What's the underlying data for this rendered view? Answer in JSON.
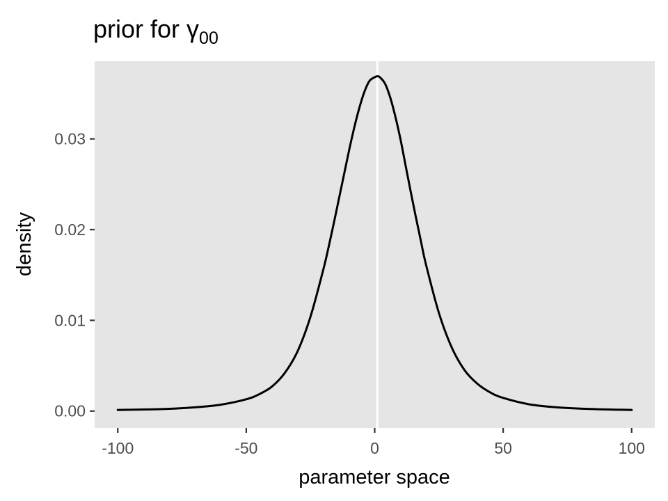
{
  "chart_data": {
    "type": "line",
    "title": "prior for ",
    "title_symbol": "γ",
    "title_subscript": "00",
    "xlabel": "parameter space",
    "ylabel": "density",
    "xlim": [
      -109,
      109
    ],
    "ylim": [
      -0.00186,
      0.03856
    ],
    "x_ticks": [
      -100,
      -50,
      0,
      50,
      100
    ],
    "x_tick_labels": [
      "-100",
      "-50",
      "0",
      "50",
      "100"
    ],
    "y_ticks": [
      0.0,
      0.01,
      0.02,
      0.03
    ],
    "y_tick_labels": [
      "0.00",
      "0.01",
      "0.02",
      "0.03"
    ],
    "grid": false,
    "panel_background": "#e5e5e5",
    "line_color": "#000000",
    "vline_x": 1,
    "vline_color": "#ffffff",
    "series": [
      {
        "x": [
          -100,
          -90,
          -80,
          -70,
          -60,
          -50,
          -45,
          -40,
          -35,
          -30,
          -25,
          -20,
          -18,
          -16,
          -14,
          -12,
          -10,
          -8,
          -6,
          -4,
          -2,
          0,
          1,
          2,
          4,
          6,
          8,
          10,
          12,
          14,
          16,
          18,
          20,
          25,
          30,
          35,
          40,
          45,
          50,
          60,
          70,
          80,
          90,
          100
        ],
        "y": [
          0.00012,
          0.00017,
          0.00025,
          0.00041,
          0.0007,
          0.0013,
          0.00185,
          0.0027,
          0.0042,
          0.0066,
          0.0104,
          0.0156,
          0.018,
          0.0206,
          0.0233,
          0.026,
          0.0287,
          0.0312,
          0.0334,
          0.0352,
          0.0364,
          0.0368,
          0.0369,
          0.0368,
          0.0361,
          0.0346,
          0.0325,
          0.03,
          0.0271,
          0.0242,
          0.0214,
          0.0187,
          0.0161,
          0.0108,
          0.007,
          0.0045,
          0.003,
          0.00205,
          0.00145,
          0.00075,
          0.00043,
          0.00027,
          0.00018,
          0.00012
        ]
      }
    ]
  }
}
